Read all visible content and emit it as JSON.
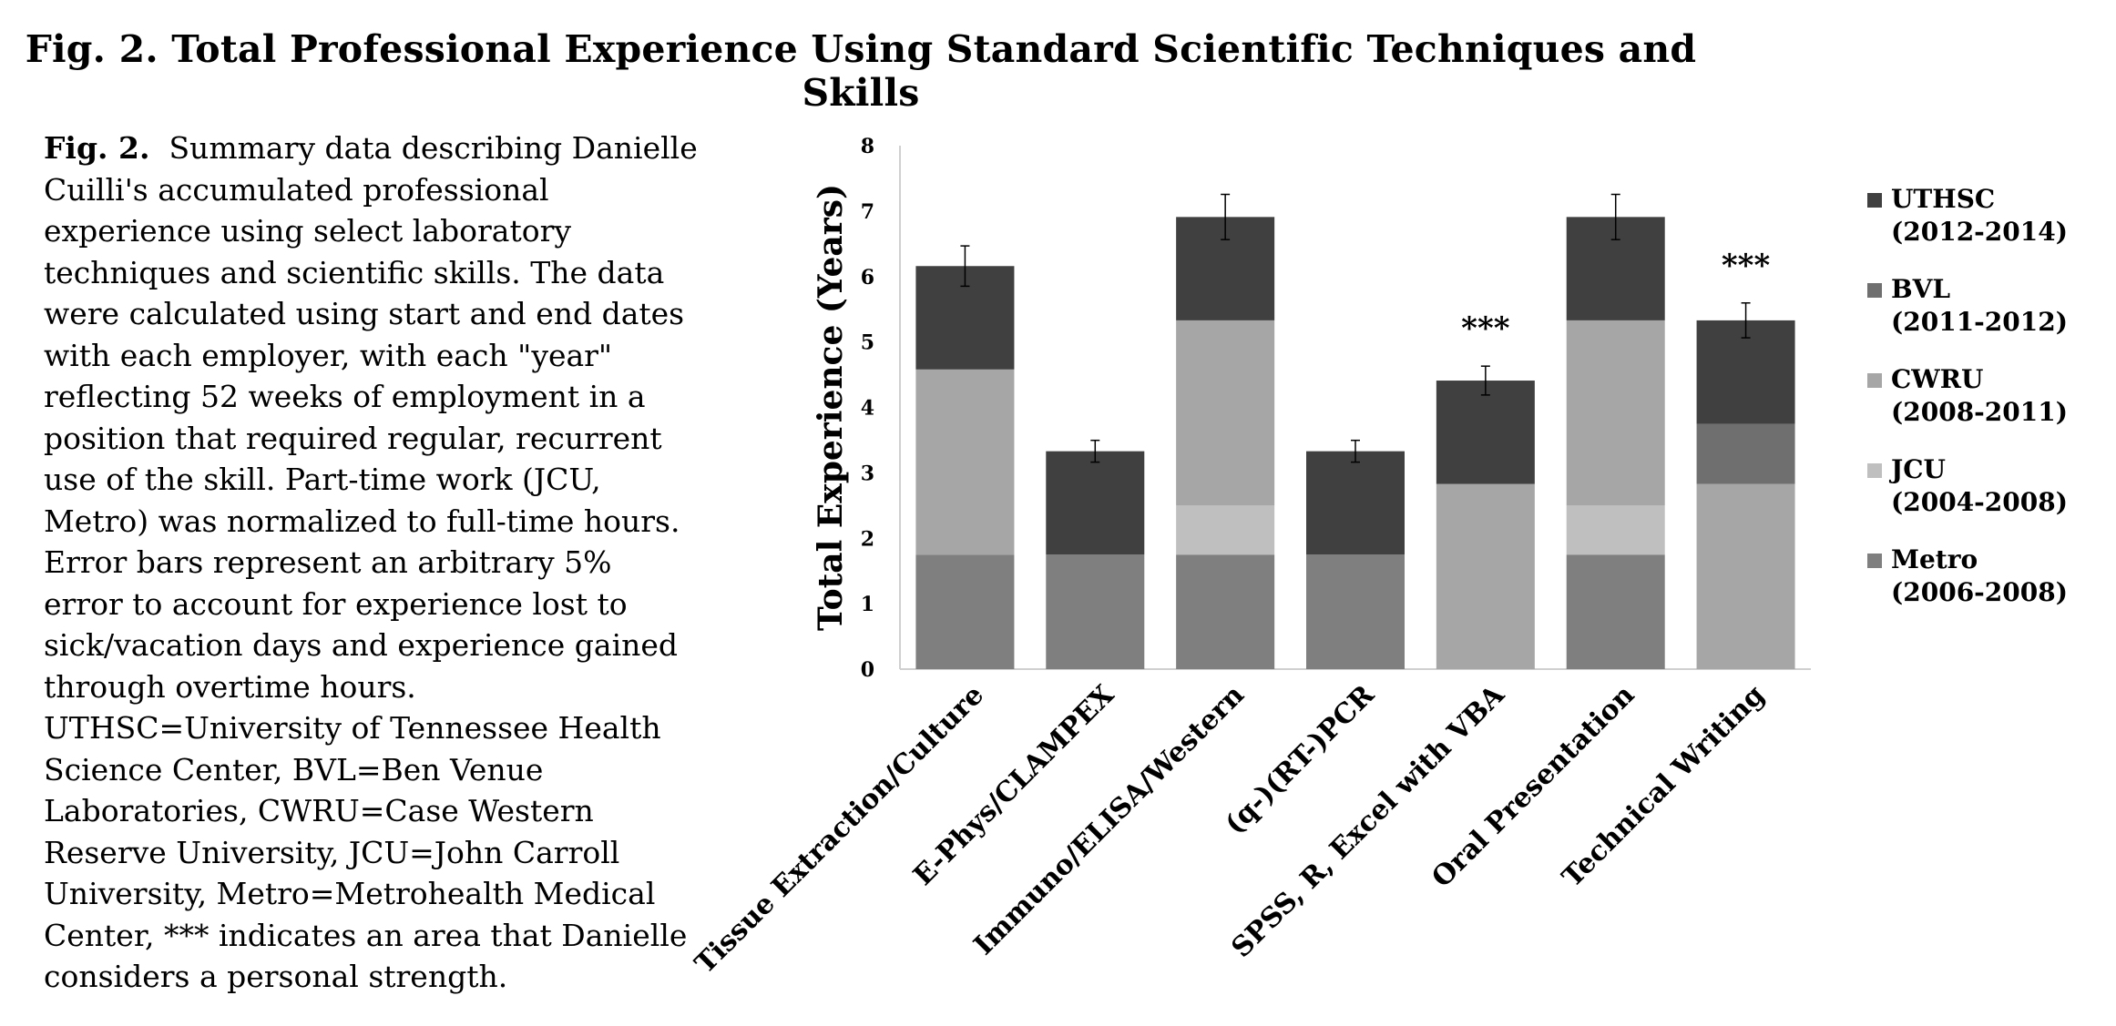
{
  "page": {
    "title": "Fig. 2. Total Professional Experience Using Standard Scientific Techniques and Skills",
    "caption_label": "Fig. 2.",
    "caption_text": "Summary data describing Danielle Cuilli's accumulated professional experience using select laboratory techniques and scientific skills. The data were calculated using start and end dates with each employer, with each \"year\" reflecting 52 weeks of employment in a position that required regular, recurrent use of  the skill. Part-time work (JCU, Metro) was normalized to full-time hours. Error bars represent an arbitrary 5% error to account for experience lost to sick/vacation days and experience gained through overtime hours. UTHSC=University of Tennessee Health Science Center, BVL=Ben Venue Laboratories, CWRU=Case Western Reserve University, JCU=John Carroll University, Metro=Metrohealth Medical Center, *** indicates an area that Danielle considers a personal strength."
  },
  "chart_data": {
    "type": "bar",
    "stacked": true,
    "ylabel": "Total Experience (Years)",
    "xlabel": "",
    "ylim": [
      0,
      8
    ],
    "yticks": [
      0,
      1,
      2,
      3,
      4,
      5,
      6,
      7,
      8
    ],
    "grid": false,
    "legend_position": "right",
    "categories": [
      "Tissue Extraction/Culture",
      "E-Phys/CLAMPEX",
      "Immuno/ELISA/Western",
      "(q-)(RT-)PCR",
      "SPSS, R, Excel with VBA",
      "Oral Presentation",
      "Technical Writing"
    ],
    "series": [
      {
        "name": "Metro (2006-2008)",
        "legend_lines": [
          "Metro",
          "(2006-2008)"
        ],
        "color": "#7f7f7f",
        "values": [
          1.75,
          1.75,
          1.75,
          1.75,
          0,
          1.75,
          0
        ]
      },
      {
        "name": "JCU (2004-2008)",
        "legend_lines": [
          "JCU",
          "(2004-2008)"
        ],
        "color": "#bfbfbf",
        "values": [
          0,
          0,
          0.75,
          0,
          0,
          0.75,
          0
        ]
      },
      {
        "name": "CWRU (2008-2011)",
        "legend_lines": [
          "CWRU",
          "(2008-2011)"
        ],
        "color": "#a6a6a6",
        "values": [
          2.83,
          0,
          2.83,
          0,
          2.83,
          2.83,
          2.83
        ]
      },
      {
        "name": "BVL (2011-2012)",
        "legend_lines": [
          "BVL",
          "(2011-2012)"
        ],
        "color": "#6f6f6f",
        "values": [
          0,
          0,
          0,
          0,
          0,
          0,
          0.92
        ]
      },
      {
        "name": "UTHSC (2012-2014)",
        "legend_lines": [
          "UTHSC",
          "(2012-2014)"
        ],
        "color": "#404040",
        "values": [
          1.58,
          1.58,
          1.58,
          1.58,
          1.58,
          1.58,
          1.58
        ]
      }
    ],
    "totals": [
      6.16,
      3.33,
      6.91,
      3.33,
      4.41,
      6.91,
      5.33
    ],
    "error_percent": 5,
    "annotations": [
      {
        "category": "SPSS, R, Excel with VBA",
        "text": "***"
      },
      {
        "category": "Technical Writing",
        "text": "***"
      }
    ]
  }
}
